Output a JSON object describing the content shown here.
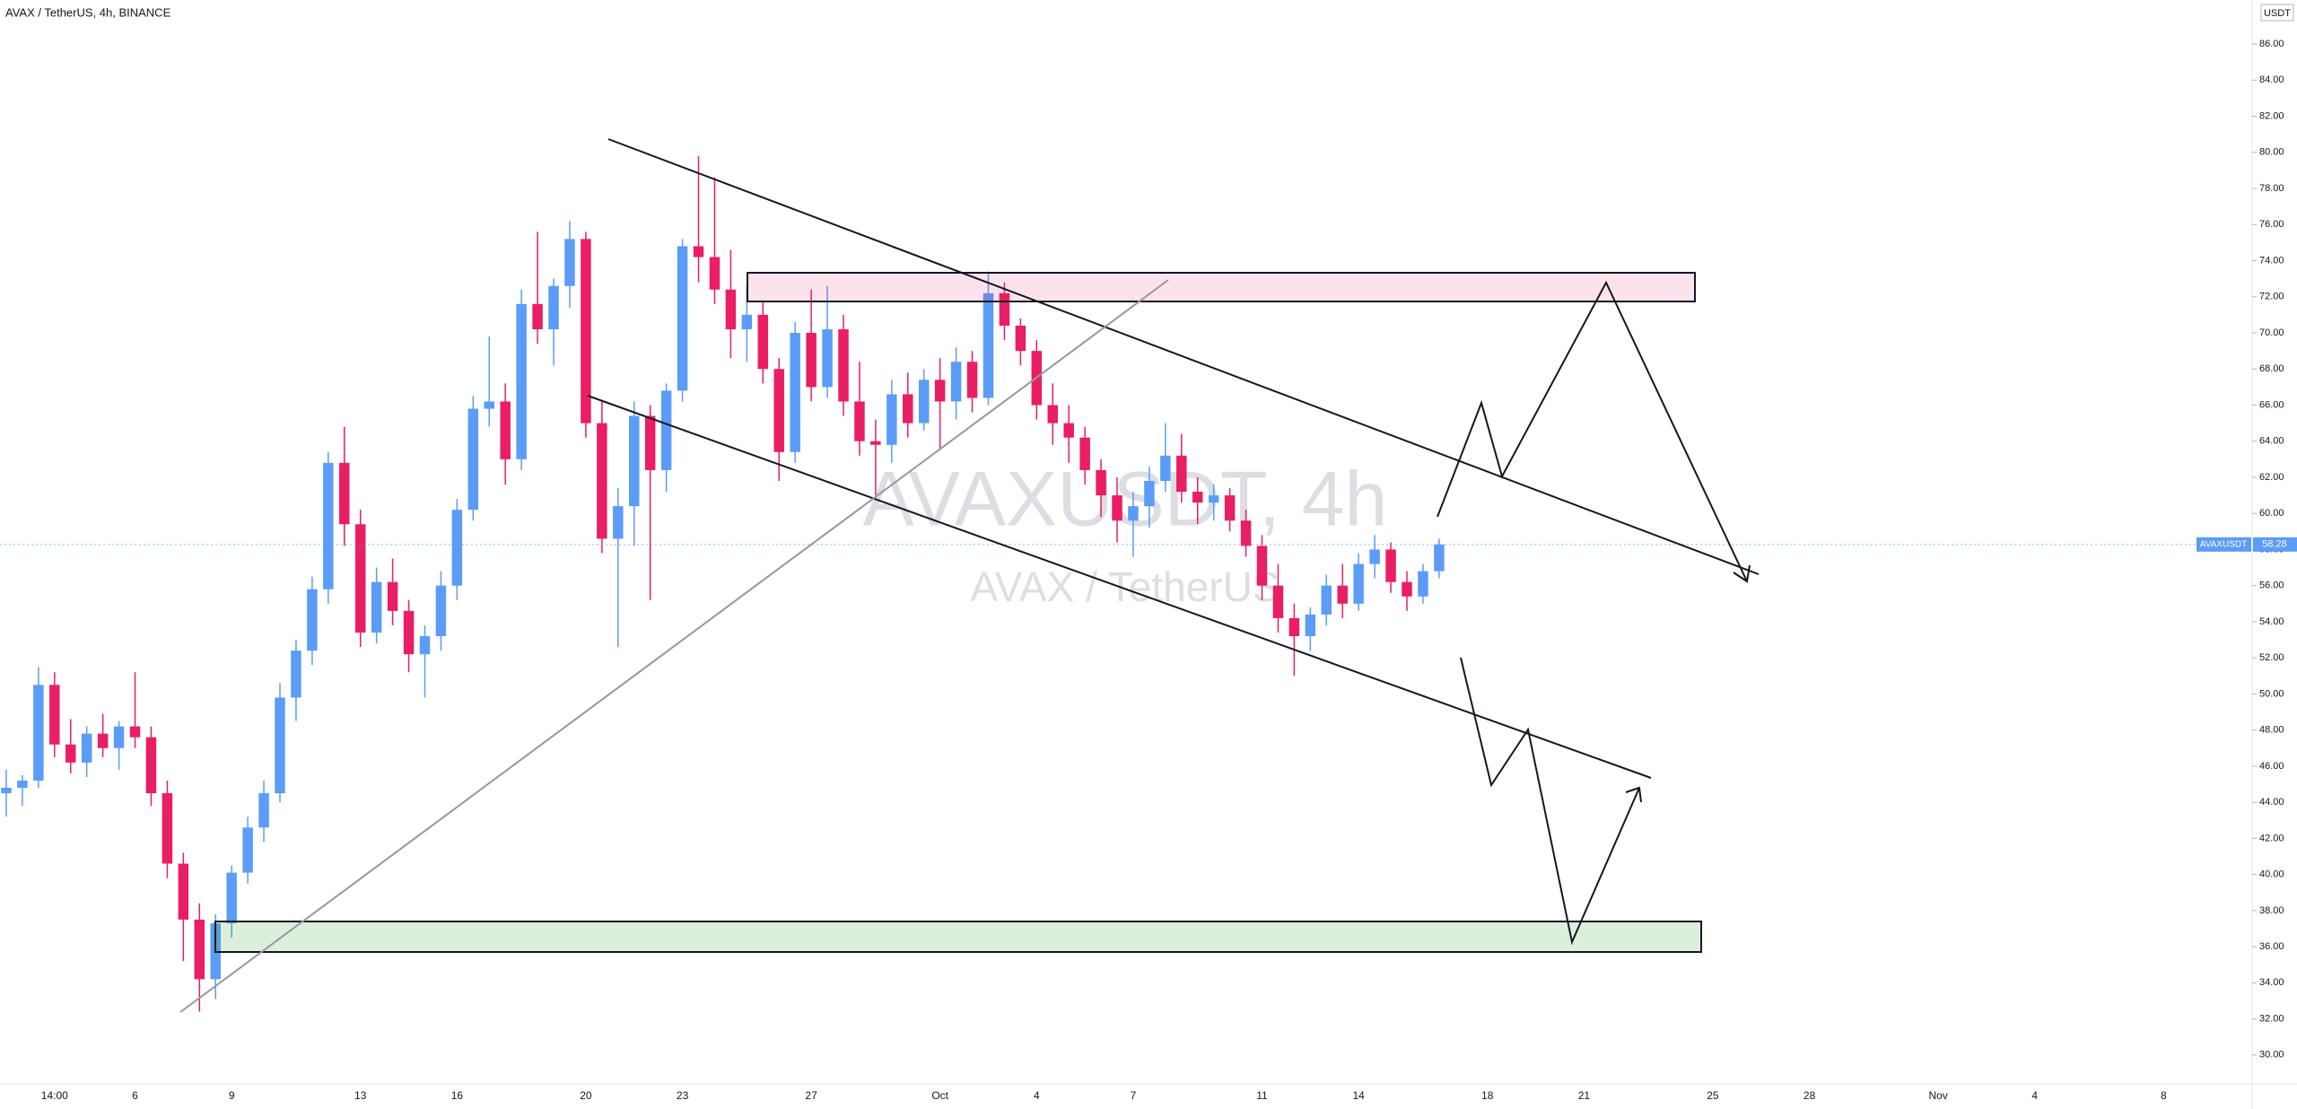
{
  "chart_data": {
    "type": "candlestick",
    "title": "AVAX / TetherUS, 4h, BINANCE",
    "currency_label": "USDT",
    "watermark": "AVAXUSDT, 4h",
    "watermark_subtitle": "AVAX / TetherUS",
    "symbol": "AVAXUSDT",
    "up_color": "#5b9cf6",
    "down_color": "#e91e63",
    "categories": [
      null,
      null,
      null,
      "14:00",
      null,
      null,
      null,
      null,
      "6",
      null,
      null,
      null,
      null,
      null,
      "9",
      null,
      null,
      null,
      null,
      null,
      null,
      null,
      "13",
      null,
      null,
      null,
      null,
      null,
      "16",
      null,
      null,
      null,
      null,
      null,
      null,
      null,
      "20",
      null,
      null,
      null,
      null,
      null,
      "23",
      null,
      null,
      null,
      null,
      null,
      null,
      null,
      "27",
      null,
      null,
      null,
      null,
      null,
      null,
      null,
      "Oct",
      null,
      null,
      null,
      null,
      null,
      "4",
      null,
      null,
      null,
      null,
      null,
      "7",
      null,
      null,
      null,
      null,
      null,
      null,
      null,
      "11",
      null,
      null,
      null,
      null,
      null,
      "14",
      null,
      null,
      null,
      null,
      null,
      null,
      null,
      "18",
      null,
      null,
      null,
      null,
      null,
      "21",
      null,
      null,
      null,
      null,
      null,
      null,
      null,
      "25",
      null,
      null,
      null,
      null,
      null,
      "28",
      null,
      null,
      null,
      null,
      null,
      null,
      null,
      "Nov",
      null,
      null,
      null,
      null,
      null,
      "4",
      null,
      null,
      null,
      null,
      null,
      null,
      null,
      "8",
      null,
      null,
      null,
      null,
      null
    ],
    "ohlc": [
      [
        44.5,
        45.8,
        43.2,
        44.8
      ],
      [
        44.8,
        45.5,
        43.8,
        45.2
      ],
      [
        45.2,
        51.5,
        44.8,
        50.5
      ],
      [
        50.5,
        51.2,
        46.5,
        47.2
      ],
      [
        47.2,
        48.6,
        45.6,
        46.2
      ],
      [
        46.2,
        48.2,
        45.4,
        47.8
      ],
      [
        47.8,
        48.9,
        46.5,
        47.0
      ],
      [
        47.0,
        48.5,
        45.8,
        48.2
      ],
      [
        48.2,
        51.2,
        47.0,
        47.6
      ],
      [
        47.6,
        48.2,
        43.8,
        44.5
      ],
      [
        44.5,
        45.2,
        39.8,
        40.6
      ],
      [
        40.6,
        41.2,
        35.2,
        37.5
      ],
      [
        37.5,
        38.4,
        32.4,
        34.2
      ],
      [
        34.2,
        37.8,
        33.1,
        37.3
      ],
      [
        37.3,
        40.5,
        36.5,
        40.1
      ],
      [
        40.1,
        43.2,
        39.5,
        42.6
      ],
      [
        42.6,
        45.2,
        41.8,
        44.5
      ],
      [
        44.5,
        50.6,
        44.0,
        49.8
      ],
      [
        49.8,
        53.0,
        48.5,
        52.4
      ],
      [
        52.4,
        56.5,
        51.6,
        55.8
      ],
      [
        55.8,
        63.4,
        55.0,
        62.8
      ],
      [
        62.8,
        64.8,
        58.2,
        59.4
      ],
      [
        59.4,
        60.2,
        52.6,
        53.4
      ],
      [
        53.4,
        57.0,
        52.8,
        56.2
      ],
      [
        56.2,
        57.5,
        53.8,
        54.6
      ],
      [
        54.6,
        55.2,
        51.2,
        52.2
      ],
      [
        52.2,
        53.8,
        49.8,
        53.2
      ],
      [
        53.2,
        56.8,
        52.4,
        56.0
      ],
      [
        56.0,
        60.8,
        55.2,
        60.2
      ],
      [
        60.2,
        66.5,
        59.6,
        65.8
      ],
      [
        65.8,
        69.8,
        64.8,
        66.2
      ],
      [
        66.2,
        67.2,
        61.6,
        63.0
      ],
      [
        63.0,
        72.4,
        62.4,
        71.6
      ],
      [
        71.6,
        75.6,
        69.4,
        70.2
      ],
      [
        70.2,
        73.0,
        68.2,
        72.6
      ],
      [
        72.6,
        76.2,
        71.4,
        75.2
      ],
      [
        75.2,
        75.6,
        64.2,
        65.0
      ],
      [
        65.0,
        66.2,
        57.8,
        58.6
      ],
      [
        58.6,
        61.4,
        52.6,
        60.4
      ],
      [
        60.4,
        66.2,
        58.2,
        65.4
      ],
      [
        65.4,
        66.0,
        55.2,
        62.4
      ],
      [
        62.4,
        67.2,
        61.2,
        66.8
      ],
      [
        66.8,
        75.2,
        66.2,
        74.8
      ],
      [
        74.8,
        79.8,
        72.8,
        74.2
      ],
      [
        74.2,
        78.6,
        71.6,
        72.4
      ],
      [
        72.4,
        74.6,
        68.6,
        70.2
      ],
      [
        70.2,
        72.6,
        68.4,
        71.0
      ],
      [
        71.0,
        71.8,
        67.2,
        68.0
      ],
      [
        68.0,
        68.6,
        61.8,
        63.4
      ],
      [
        63.4,
        70.6,
        62.8,
        70.0
      ],
      [
        70.0,
        72.4,
        66.2,
        67.0
      ],
      [
        67.0,
        72.6,
        66.4,
        70.2
      ],
      [
        70.2,
        71.0,
        65.4,
        66.2
      ],
      [
        66.2,
        68.4,
        63.2,
        64.0
      ],
      [
        64.0,
        65.2,
        61.0,
        63.8
      ],
      [
        63.8,
        67.4,
        62.8,
        66.6
      ],
      [
        66.6,
        67.8,
        64.2,
        65.0
      ],
      [
        65.0,
        68.0,
        64.6,
        67.4
      ],
      [
        67.4,
        68.6,
        63.6,
        66.2
      ],
      [
        66.2,
        69.2,
        65.2,
        68.4
      ],
      [
        68.4,
        69.0,
        65.6,
        66.4
      ],
      [
        66.4,
        73.4,
        66.0,
        72.2
      ],
      [
        72.2,
        72.8,
        69.6,
        70.4
      ],
      [
        70.4,
        70.8,
        68.2,
        69.0
      ],
      [
        69.0,
        69.6,
        65.2,
        66.0
      ],
      [
        66.0,
        67.2,
        63.8,
        65.0
      ],
      [
        65.0,
        66.0,
        62.8,
        64.2
      ],
      [
        64.2,
        64.8,
        61.6,
        62.4
      ],
      [
        62.4,
        63.0,
        59.8,
        61.0
      ],
      [
        61.0,
        62.0,
        58.4,
        59.6
      ],
      [
        59.6,
        61.2,
        57.6,
        60.4
      ],
      [
        60.4,
        62.6,
        59.2,
        61.8
      ],
      [
        61.8,
        65.0,
        61.2,
        63.2
      ],
      [
        63.2,
        64.4,
        60.6,
        61.2
      ],
      [
        61.2,
        62.0,
        59.4,
        60.6
      ],
      [
        60.6,
        61.6,
        59.6,
        61.0
      ],
      [
        61.0,
        61.4,
        59.0,
        59.6
      ],
      [
        59.6,
        60.2,
        57.6,
        58.2
      ],
      [
        58.2,
        58.8,
        55.2,
        56.0
      ],
      [
        56.0,
        57.2,
        53.4,
        54.2
      ],
      [
        54.2,
        55.0,
        51.0,
        53.2
      ],
      [
        53.2,
        54.8,
        52.4,
        54.4
      ],
      [
        54.4,
        56.6,
        53.8,
        56.0
      ],
      [
        56.0,
        57.2,
        54.2,
        55.0
      ],
      [
        55.0,
        57.8,
        54.6,
        57.2
      ],
      [
        57.2,
        58.8,
        56.4,
        58.0
      ],
      [
        58.0,
        58.4,
        55.6,
        56.2
      ],
      [
        56.2,
        56.8,
        54.6,
        55.4
      ],
      [
        55.4,
        57.2,
        55.0,
        56.8
      ],
      [
        56.8,
        58.6,
        56.4,
        58.28
      ],
      null,
      null,
      null,
      null,
      null,
      null,
      null,
      null,
      null,
      null,
      null,
      null,
      null,
      null,
      null,
      null,
      null,
      null,
      null,
      null,
      null,
      null,
      null,
      null,
      null,
      null,
      null,
      null,
      null,
      null,
      null,
      null,
      null,
      null,
      null,
      null,
      null,
      null,
      null,
      null,
      null,
      null,
      null,
      null,
      null,
      null,
      null,
      null,
      null,
      null
    ],
    "ylim": [
      28.4,
      88.44
    ],
    "yticks": [
      {
        "value": 30,
        "label": "30.00"
      },
      {
        "value": 32,
        "label": "32.00"
      },
      {
        "value": 34,
        "label": "34.00"
      },
      {
        "value": 36,
        "label": "36.00"
      },
      {
        "value": 38,
        "label": "38.00"
      },
      {
        "value": 40,
        "label": "40.00"
      },
      {
        "value": 42,
        "label": "42.00"
      },
      {
        "value": 44,
        "label": "44.00"
      },
      {
        "value": 46,
        "label": "46.00"
      },
      {
        "value": 48,
        "label": "48.00"
      },
      {
        "value": 50,
        "label": "50.00"
      },
      {
        "value": 52,
        "label": "52.00"
      },
      {
        "value": 54,
        "label": "54.00"
      },
      {
        "value": 56,
        "label": "56.00"
      },
      {
        "value": 58,
        "label": "58.00"
      },
      {
        "value": 60,
        "label": "60.00"
      },
      {
        "value": 62,
        "label": "62.00"
      },
      {
        "value": 64,
        "label": "64.00"
      },
      {
        "value": 66,
        "label": "66.00"
      },
      {
        "value": 68,
        "label": "68.00"
      },
      {
        "value": 70,
        "label": "70.00"
      },
      {
        "value": 72,
        "label": "72.00"
      },
      {
        "value": 74,
        "label": "74.00"
      },
      {
        "value": 76,
        "label": "76.00"
      },
      {
        "value": 78,
        "label": "78.00"
      },
      {
        "value": 80,
        "label": "80.00"
      },
      {
        "value": 82,
        "label": "82.00"
      },
      {
        "value": 84,
        "label": "84.00"
      },
      {
        "value": 86,
        "label": "86.00"
      }
    ]
  }
}
